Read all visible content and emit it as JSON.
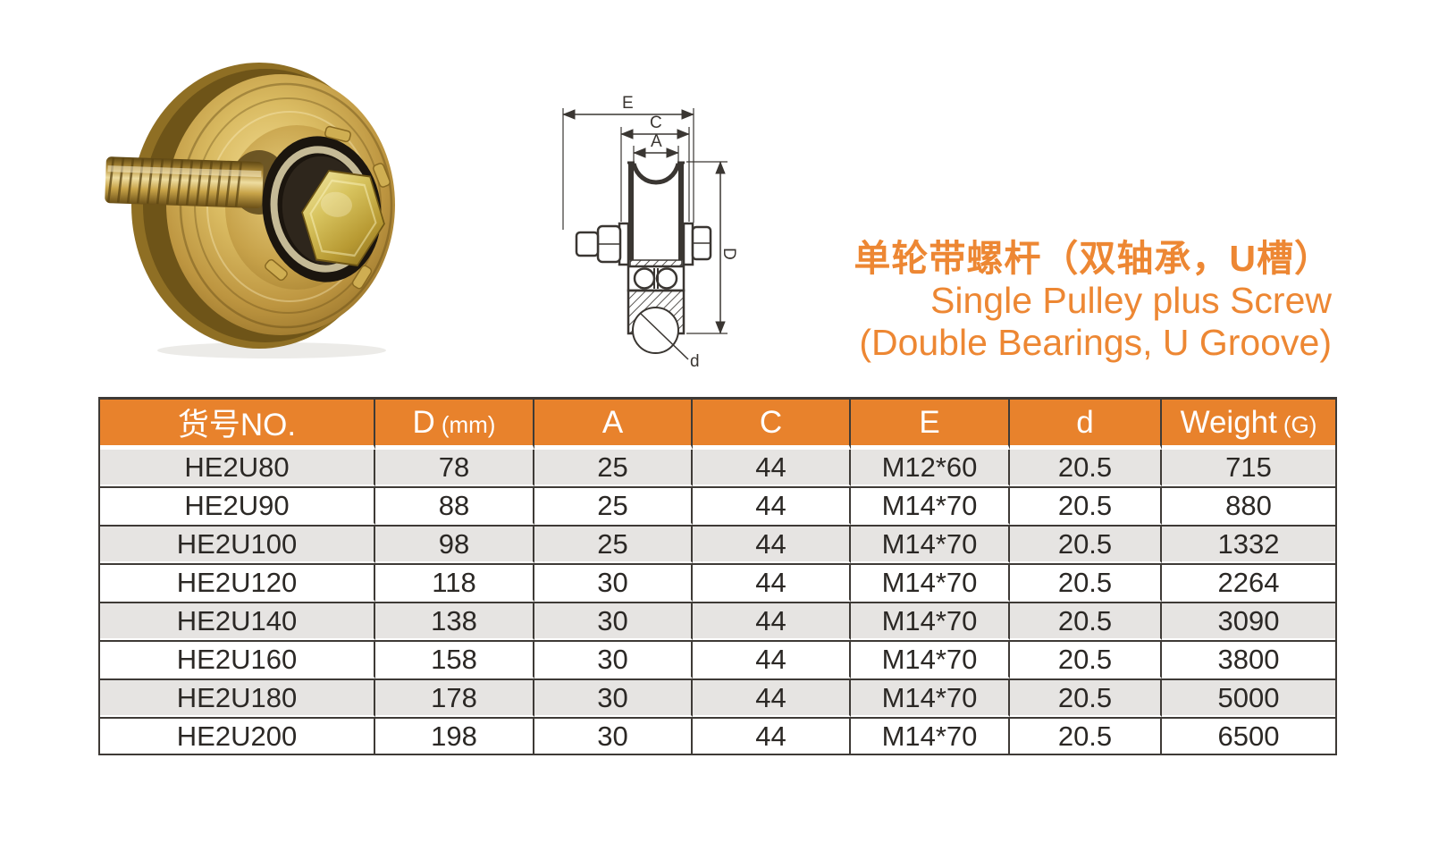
{
  "page": {
    "background": "#ffffff"
  },
  "title": {
    "zh": "单轮带螺杆（双轴承，U槽）",
    "en_line1": "Single Pulley plus Screw",
    "en_line2": "(Double Bearings, U Groove)",
    "color": "#ed8733"
  },
  "photo": {
    "description": "gold single pulley wheel with threaded screw shaft and hex bolt"
  },
  "diagram": {
    "labels": {
      "E": "E",
      "C": "C",
      "A": "A",
      "D": "D",
      "d": "d"
    }
  },
  "table": {
    "header_bg": "#e8822c",
    "border_color": "#3e3a36",
    "row_alt_bg": "#e6e4e2",
    "columns": [
      {
        "label": "货号NO.",
        "sub": ""
      },
      {
        "label": "D",
        "sub": "(mm)"
      },
      {
        "label": "A",
        "sub": ""
      },
      {
        "label": "C",
        "sub": ""
      },
      {
        "label": "E",
        "sub": ""
      },
      {
        "label": "d",
        "sub": ""
      },
      {
        "label": "Weight",
        "sub": "(G)"
      }
    ],
    "rows": [
      [
        "HE2U80",
        "78",
        "25",
        "44",
        "M12*60",
        "20.5",
        "715"
      ],
      [
        "HE2U90",
        "88",
        "25",
        "44",
        "M14*70",
        "20.5",
        "880"
      ],
      [
        "HE2U100",
        "98",
        "25",
        "44",
        "M14*70",
        "20.5",
        "1332"
      ],
      [
        "HE2U120",
        "118",
        "30",
        "44",
        "M14*70",
        "20.5",
        "2264"
      ],
      [
        "HE2U140",
        "138",
        "30",
        "44",
        "M14*70",
        "20.5",
        "3090"
      ],
      [
        "HE2U160",
        "158",
        "30",
        "44",
        "M14*70",
        "20.5",
        "3800"
      ],
      [
        "HE2U180",
        "178",
        "30",
        "44",
        "M14*70",
        "20.5",
        "5000"
      ],
      [
        "HE2U200",
        "198",
        "30",
        "44",
        "M14*70",
        "20.5",
        "6500"
      ]
    ]
  }
}
